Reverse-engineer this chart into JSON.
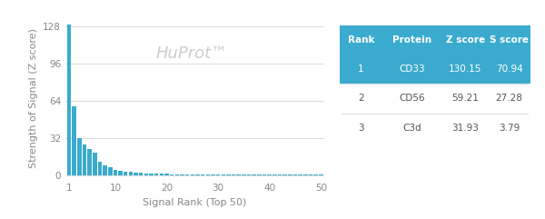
{
  "bar_color": "#3aabce",
  "bar_values": [
    130.15,
    59.21,
    31.93,
    26.0,
    22.5,
    19.0,
    11.5,
    8.5,
    6.5,
    4.5,
    3.5,
    3.0,
    2.5,
    2.2,
    1.8,
    1.5,
    1.3,
    1.1,
    1.0,
    0.9,
    0.8,
    0.75,
    0.7,
    0.65,
    0.6,
    0.55,
    0.5,
    0.45,
    0.4,
    0.38,
    0.35,
    0.33,
    0.3,
    0.28,
    0.26,
    0.24,
    0.22,
    0.2,
    0.18,
    0.17,
    0.16,
    0.15,
    0.14,
    0.13,
    0.12,
    0.11,
    0.1,
    0.09,
    0.08,
    0.07
  ],
  "xlabel": "Signal Rank (Top 50)",
  "ylabel": "Strength of Signal (Z score)",
  "yticks": [
    0,
    32,
    64,
    96,
    128
  ],
  "xticks": [
    1,
    10,
    20,
    30,
    40,
    50
  ],
  "watermark": "HuProt™",
  "watermark_color": "#cccccc",
  "grid_color": "#dddddd",
  "background_color": "#ffffff",
  "table_headers": [
    "Rank",
    "Protein",
    "Z score",
    "S score"
  ],
  "table_rows": [
    [
      "1",
      "CD33",
      "130.15",
      "70.94"
    ],
    [
      "2",
      "CD56",
      "59.21",
      "27.28"
    ],
    [
      "3",
      "C3d",
      "31.93",
      "3.79"
    ]
  ],
  "table_highlight_row": 0,
  "table_highlight_color": "#3aabce",
  "table_highlight_text_color": "#ffffff",
  "table_normal_text_color": "#555555",
  "table_header_color": "#ffffff",
  "table_header_bg": "#3aabce",
  "table_bg": "#ffffff",
  "axis_color": "#cccccc",
  "tick_color": "#888888",
  "label_color": "#888888"
}
